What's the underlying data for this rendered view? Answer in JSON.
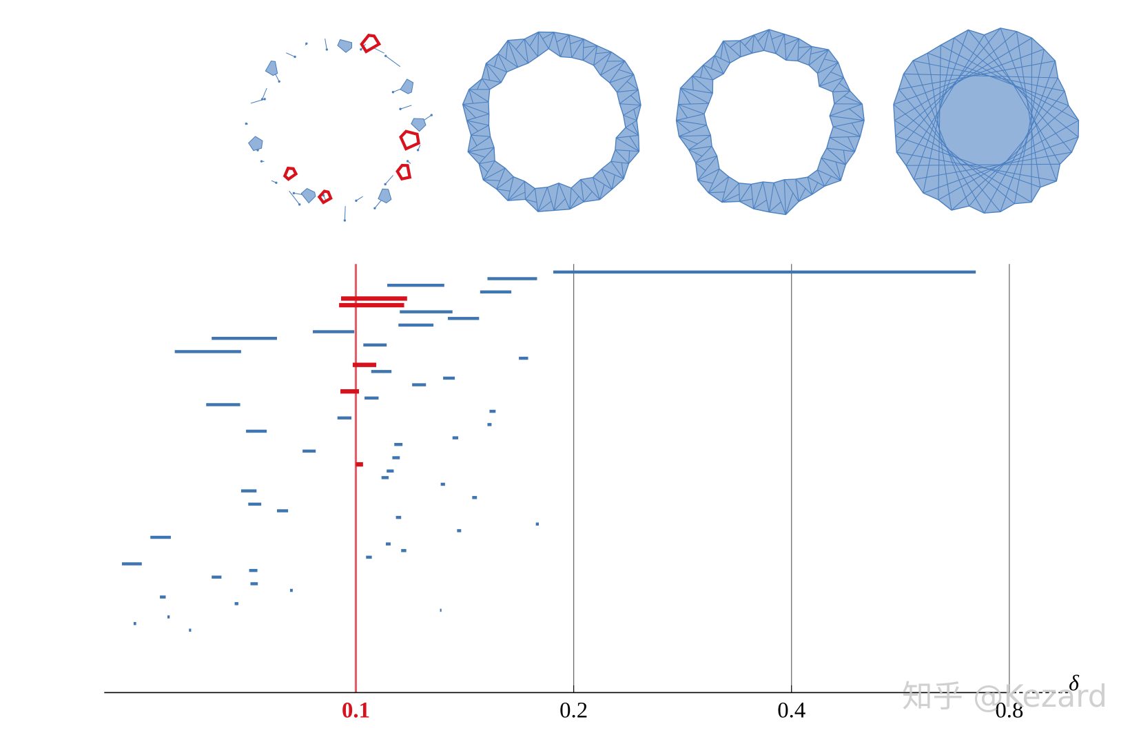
{
  "chart_data": {
    "type": "barcode",
    "xlabel": "δ",
    "xscale": "log",
    "xlim": [
      0.0449,
      0.91
    ],
    "xticks": [
      0.1,
      0.2,
      0.4,
      0.8
    ],
    "grid": true,
    "highlight": 0.1,
    "highlight_color": "#e0606a",
    "start": [
      0.1874,
      0.152,
      0.1105,
      0.1485,
      0.0954,
      0.0948,
      0.115,
      0.134,
      0.1145,
      0.0872,
      0.0632,
      0.1024,
      0.0562,
      0.168,
      0.099,
      0.105,
      0.132,
      0.1196,
      0.0952,
      0.1028,
      0.0621,
      0.153,
      0.0943,
      0.152,
      0.0705,
      0.136,
      0.113,
      0.0844,
      0.1123,
      0.1,
      0.1103,
      0.1085,
      0.131,
      0.0694,
      0.1448,
      0.071,
      0.0778,
      0.1136,
      0.1773,
      0.138,
      0.052,
      0.11,
      0.1155,
      0.1033,
      0.0475,
      0.0712,
      0.0632,
      0.0715,
      0.0811,
      0.0536,
      0.068,
      0.1307,
      0.0549,
      0.0493,
      0.0588
    ],
    "end": [
      0.719,
      0.178,
      0.1325,
      0.164,
      0.1177,
      0.1166,
      0.136,
      0.148,
      0.128,
      0.0995,
      0.0778,
      0.1103,
      0.0694,
      0.173,
      0.1067,
      0.112,
      0.137,
      0.125,
      0.101,
      0.1075,
      0.0692,
      0.156,
      0.0986,
      0.154,
      0.0753,
      0.1385,
      0.116,
      0.088,
      0.115,
      0.1023,
      0.1128,
      0.111,
      0.1328,
      0.0729,
      0.147,
      0.074,
      0.0806,
      0.1155,
      0.179,
      0.1398,
      0.0555,
      0.1117,
      0.1174,
      0.1052,
      0.0506,
      0.0731,
      0.0652,
      0.0732,
      0.0818,
      0.0546,
      0.0688,
      0.131,
      0.0553,
      0.0497,
      0.0592
    ],
    "colors": [
      "#3f75b0",
      "#3f75b0",
      "#3f75b0",
      "#3f75b0",
      "#d7121d",
      "#d7121d",
      "#3f75b0",
      "#3f75b0",
      "#3f75b0",
      "#3f75b0",
      "#3f75b0",
      "#3f75b0",
      "#3f75b0",
      "#3f75b0",
      "#d7121d",
      "#3f75b0",
      "#3f75b0",
      "#3f75b0",
      "#d7121d",
      "#3f75b0",
      "#3f75b0",
      "#3f75b0",
      "#3f75b0",
      "#3f75b0",
      "#3f75b0",
      "#3f75b0",
      "#3f75b0",
      "#3f75b0",
      "#3f75b0",
      "#d7121d",
      "#3f75b0",
      "#3f75b0",
      "#3f75b0",
      "#3f75b0",
      "#3f75b0",
      "#3f75b0",
      "#3f75b0",
      "#3f75b0",
      "#3f75b0",
      "#3f75b0",
      "#3f75b0",
      "#3f75b0",
      "#3f75b0",
      "#3f75b0",
      "#3f75b0",
      "#3f75b0",
      "#3f75b0",
      "#3f75b0",
      "#3f75b0",
      "#3f75b0",
      "#3f75b0",
      "#3f75b0",
      "#3f75b0",
      "#3f75b0",
      "#3f75b0"
    ]
  },
  "watermark": "知乎 @Kezard"
}
